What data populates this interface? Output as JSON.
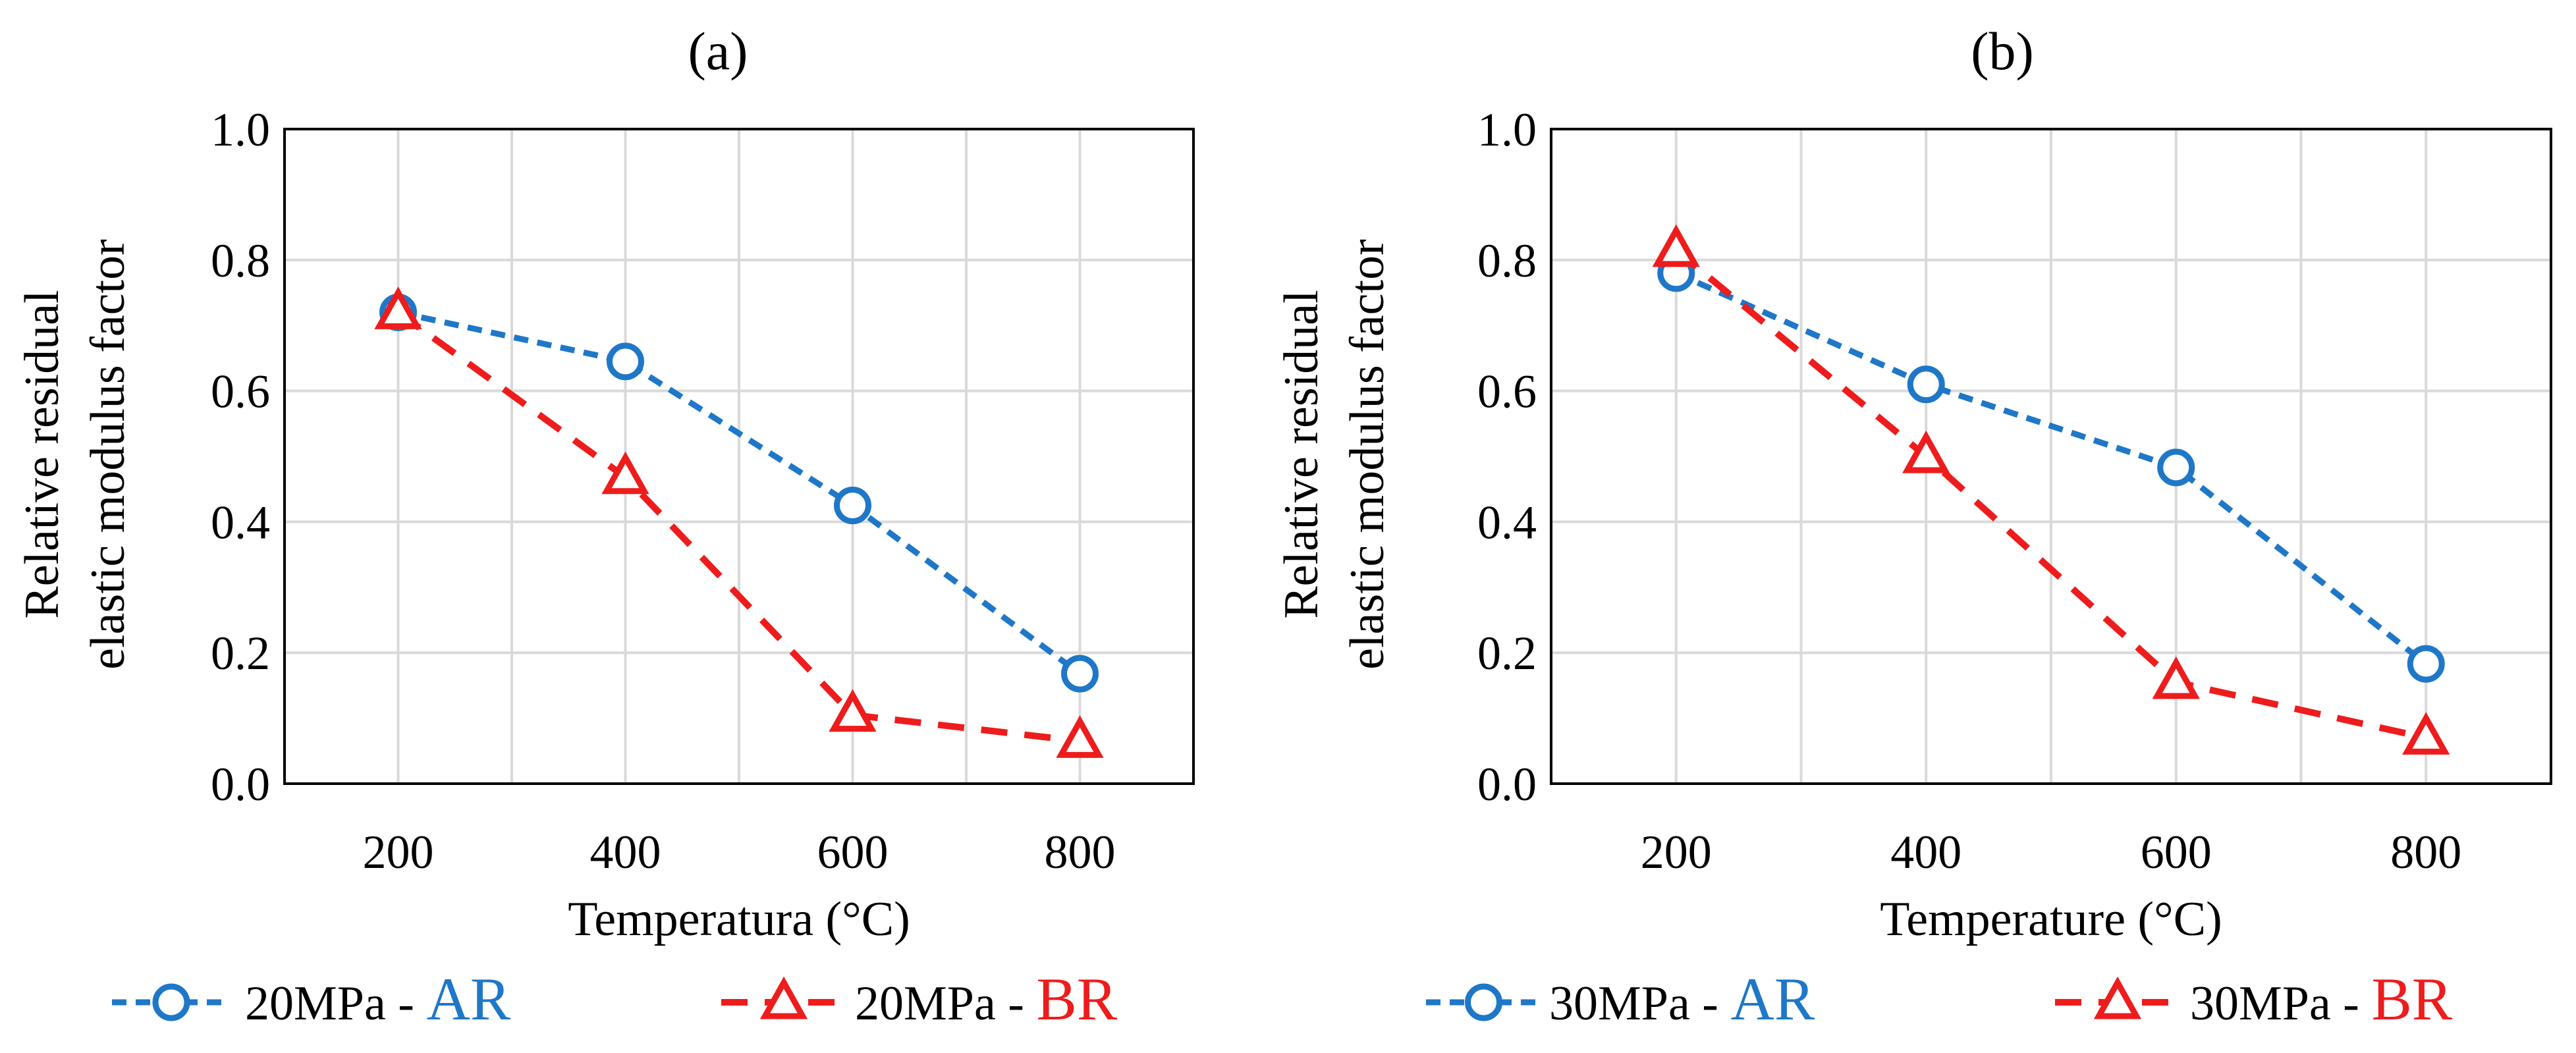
{
  "figure": {
    "colors": {
      "ar": "#1f77c8",
      "br": "#ee1c1c",
      "grid": "#d9d9d9",
      "axis": "#000000"
    }
  },
  "chart_data": [
    {
      "type": "line",
      "title": "(a)",
      "xlabel": "Temperatura (°C)",
      "ylabel_line1": "Relative residual",
      "ylabel_line2": "elastic modulus factor",
      "x": [
        200,
        400,
        600,
        800
      ],
      "x_ticks": [
        "200",
        "400",
        "600",
        "800"
      ],
      "xlim": [
        100,
        900
      ],
      "ylim": [
        0,
        1
      ],
      "y_ticks": [
        "0.0",
        "0.2",
        "0.4",
        "0.6",
        "0.8",
        "1.0"
      ],
      "grid": true,
      "legend_position": "bottom",
      "series": [
        {
          "name": "20MPa - AR",
          "label_prefix": "20MPa - ",
          "label_suffix": "AR",
          "key": "ar",
          "marker": "circle",
          "values": [
            0.72,
            0.645,
            0.425,
            0.168
          ]
        },
        {
          "name": "20MPa - BR",
          "label_prefix": "20MPa - ",
          "label_suffix": "BR",
          "key": "br",
          "marker": "triangle",
          "values": [
            0.72,
            0.468,
            0.105,
            0.065
          ]
        }
      ]
    },
    {
      "type": "line",
      "title": "(b)",
      "xlabel": "Temperature (°C)",
      "ylabel_line1": "Relative residual",
      "ylabel_line2": "elastic modulus factor",
      "x": [
        200,
        400,
        600,
        800
      ],
      "x_ticks": [
        "200",
        "400",
        "600",
        "800"
      ],
      "xlim": [
        100,
        900
      ],
      "ylim": [
        0,
        1
      ],
      "y_ticks": [
        "0.0",
        "0.2",
        "0.4",
        "0.6",
        "0.8",
        "1.0"
      ],
      "grid": true,
      "legend_position": "bottom",
      "series": [
        {
          "name": "30MPa - AR",
          "label_prefix": "30MPa - ",
          "label_suffix": "AR",
          "key": "ar",
          "marker": "circle",
          "values": [
            0.78,
            0.61,
            0.483,
            0.183
          ]
        },
        {
          "name": "30MPa - BR",
          "label_prefix": "30MPa - ",
          "label_suffix": "BR",
          "key": "br",
          "marker": "triangle",
          "values": [
            0.815,
            0.5,
            0.155,
            0.07
          ]
        }
      ]
    }
  ]
}
